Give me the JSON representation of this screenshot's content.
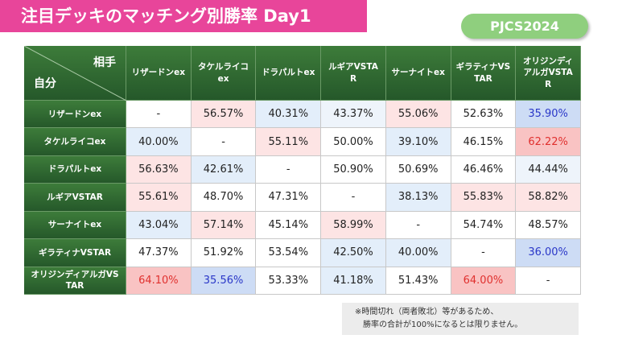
{
  "header": {
    "title": "注目デッキのマッチング別勝率 Day1",
    "badge": "PJCS2024"
  },
  "table": {
    "corner_top": "相手",
    "corner_bottom": "自分",
    "columns": [
      "リザードンex",
      "タケルライコex",
      "ドラパルトex",
      "ルギアVSTAR",
      "サーナイトex",
      "ギラティナVSTAR",
      "オリジンディアルガVSTAR"
    ],
    "rows": [
      {
        "label": "リザードンex",
        "cells": [
          {
            "text": "-",
            "fill": "#ffffff",
            "ink": "#222222"
          },
          {
            "text": "56.57%",
            "fill": "#fde4e4",
            "ink": "#222222"
          },
          {
            "text": "40.31%",
            "fill": "#e3eefa",
            "ink": "#222222"
          },
          {
            "text": "43.37%",
            "fill": "#eef4fb",
            "ink": "#222222"
          },
          {
            "text": "55.06%",
            "fill": "#fde4e4",
            "ink": "#222222"
          },
          {
            "text": "52.63%",
            "fill": "#ffffff",
            "ink": "#222222"
          },
          {
            "text": "35.90%",
            "fill": "#cddcf5",
            "ink": "#2a37c8"
          }
        ]
      },
      {
        "label": "タケルライコex",
        "cells": [
          {
            "text": "40.00%",
            "fill": "#e3eefa",
            "ink": "#222222"
          },
          {
            "text": "-",
            "fill": "#ffffff",
            "ink": "#222222"
          },
          {
            "text": "55.11%",
            "fill": "#fde4e4",
            "ink": "#222222"
          },
          {
            "text": "50.00%",
            "fill": "#ffffff",
            "ink": "#222222"
          },
          {
            "text": "39.10%",
            "fill": "#e3eefa",
            "ink": "#222222"
          },
          {
            "text": "46.15%",
            "fill": "#ffffff",
            "ink": "#222222"
          },
          {
            "text": "62.22%",
            "fill": "#f9c3c3",
            "ink": "#e0302e"
          }
        ]
      },
      {
        "label": "ドラパルトex",
        "cells": [
          {
            "text": "56.63%",
            "fill": "#fde4e4",
            "ink": "#222222"
          },
          {
            "text": "42.61%",
            "fill": "#e3eefa",
            "ink": "#222222"
          },
          {
            "text": "-",
            "fill": "#ffffff",
            "ink": "#222222"
          },
          {
            "text": "50.90%",
            "fill": "#ffffff",
            "ink": "#222222"
          },
          {
            "text": "50.69%",
            "fill": "#ffffff",
            "ink": "#222222"
          },
          {
            "text": "46.46%",
            "fill": "#ffffff",
            "ink": "#222222"
          },
          {
            "text": "44.44%",
            "fill": "#eef4fb",
            "ink": "#222222"
          }
        ]
      },
      {
        "label": "ルギアVSTAR",
        "cells": [
          {
            "text": "55.61%",
            "fill": "#fde4e4",
            "ink": "#222222"
          },
          {
            "text": "48.70%",
            "fill": "#ffffff",
            "ink": "#222222"
          },
          {
            "text": "47.31%",
            "fill": "#ffffff",
            "ink": "#222222"
          },
          {
            "text": "-",
            "fill": "#ffffff",
            "ink": "#222222"
          },
          {
            "text": "38.13%",
            "fill": "#e3eefa",
            "ink": "#222222"
          },
          {
            "text": "55.83%",
            "fill": "#fde4e4",
            "ink": "#222222"
          },
          {
            "text": "58.82%",
            "fill": "#fde4e4",
            "ink": "#222222"
          }
        ]
      },
      {
        "label": "サーナイトex",
        "cells": [
          {
            "text": "43.04%",
            "fill": "#e3eefa",
            "ink": "#222222"
          },
          {
            "text": "57.14%",
            "fill": "#fde4e4",
            "ink": "#222222"
          },
          {
            "text": "45.14%",
            "fill": "#ffffff",
            "ink": "#222222"
          },
          {
            "text": "58.99%",
            "fill": "#fde4e4",
            "ink": "#222222"
          },
          {
            "text": "-",
            "fill": "#ffffff",
            "ink": "#222222"
          },
          {
            "text": "54.74%",
            "fill": "#ffffff",
            "ink": "#222222"
          },
          {
            "text": "48.57%",
            "fill": "#ffffff",
            "ink": "#222222"
          }
        ]
      },
      {
        "label": "ギラティナVSTAR",
        "cells": [
          {
            "text": "47.37%",
            "fill": "#ffffff",
            "ink": "#222222"
          },
          {
            "text": "51.92%",
            "fill": "#ffffff",
            "ink": "#222222"
          },
          {
            "text": "53.54%",
            "fill": "#ffffff",
            "ink": "#222222"
          },
          {
            "text": "42.50%",
            "fill": "#e3eefa",
            "ink": "#222222"
          },
          {
            "text": "40.00%",
            "fill": "#e3eefa",
            "ink": "#222222"
          },
          {
            "text": "-",
            "fill": "#ffffff",
            "ink": "#222222"
          },
          {
            "text": "36.00%",
            "fill": "#cddcf5",
            "ink": "#2a37c8"
          }
        ]
      },
      {
        "label": "オリジンディアルガVSTAR",
        "cells": [
          {
            "text": "64.10%",
            "fill": "#f9c3c3",
            "ink": "#e0302e"
          },
          {
            "text": "35.56%",
            "fill": "#cddcf5",
            "ink": "#2a37c8"
          },
          {
            "text": "53.33%",
            "fill": "#ffffff",
            "ink": "#222222"
          },
          {
            "text": "41.18%",
            "fill": "#e3eefa",
            "ink": "#222222"
          },
          {
            "text": "51.43%",
            "fill": "#ffffff",
            "ink": "#222222"
          },
          {
            "text": "64.00%",
            "fill": "#f9c3c3",
            "ink": "#e0302e"
          },
          {
            "text": "-",
            "fill": "#ffffff",
            "ink": "#222222"
          }
        ]
      }
    ]
  },
  "note": [
    "※時間切れ（両者敗北）等があるため、",
    "勝率の合計が100%になるとは限りません。"
  ]
}
